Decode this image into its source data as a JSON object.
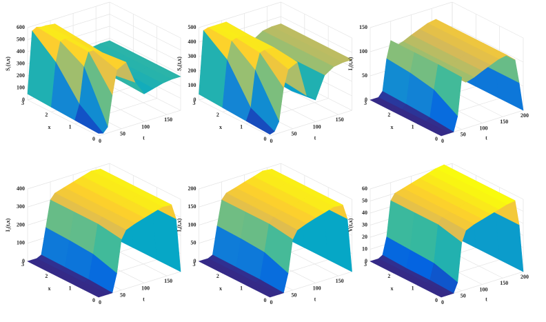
{
  "chart_data": [
    {
      "type": "surface",
      "zlabel": "S₁(t,x)",
      "xlabel": "x",
      "tlabel": "t",
      "x": [
        0,
        1,
        2,
        3
      ],
      "t": [
        0,
        10,
        20,
        30,
        40,
        60,
        80,
        100,
        120,
        140,
        160,
        180
      ],
      "z": [
        [
          20,
          10,
          50,
          300,
          500,
          540,
          350,
          230,
          250,
          270,
          280,
          280
        ],
        [
          30,
          150,
          450,
          560,
          560,
          520,
          320,
          240,
          260,
          270,
          280,
          280
        ],
        [
          40,
          400,
          560,
          570,
          570,
          540,
          320,
          240,
          260,
          270,
          280,
          280
        ],
        [
          50,
          560,
          580,
          570,
          570,
          560,
          330,
          250,
          260,
          270,
          280,
          280
        ]
      ],
      "xlim": [
        0,
        3
      ],
      "xticks": [
        0,
        1,
        2,
        3
      ],
      "tlim": [
        0,
        180
      ],
      "tticks": [
        0,
        50,
        100,
        150
      ],
      "zlim": [
        0,
        600
      ],
      "zticks": [
        0,
        100,
        200,
        300,
        400,
        500,
        600
      ]
    },
    {
      "type": "surface",
      "zlabel": "S₂(t,x)",
      "xlabel": "x",
      "tlabel": "t",
      "x": [
        0,
        1,
        2,
        3
      ],
      "t": [
        0,
        10,
        20,
        30,
        40,
        60,
        80,
        100,
        120,
        140,
        160,
        180
      ],
      "z": [
        [
          10,
          20,
          80,
          300,
          420,
          450,
          200,
          150,
          300,
          340,
          350,
          350
        ],
        [
          20,
          100,
          350,
          460,
          470,
          470,
          220,
          130,
          300,
          340,
          350,
          350
        ],
        [
          30,
          350,
          470,
          480,
          480,
          470,
          230,
          140,
          300,
          340,
          350,
          350
        ],
        [
          40,
          470,
          480,
          480,
          480,
          480,
          240,
          150,
          300,
          340,
          350,
          350
        ]
      ],
      "xlim": [
        0,
        3
      ],
      "xticks": [
        0,
        1,
        2,
        3
      ],
      "tlim": [
        0,
        180
      ],
      "tticks": [
        0,
        50,
        100,
        150
      ],
      "zlim": [
        0,
        500
      ],
      "zticks": [
        0,
        100,
        200,
        300,
        400,
        500
      ]
    },
    {
      "type": "surface",
      "zlabel": "I₁(t,x)",
      "xlabel": "x",
      "tlabel": "t",
      "x": [
        0,
        1,
        2,
        3
      ],
      "t": [
        0,
        10,
        20,
        30,
        40,
        50,
        60,
        80,
        100,
        120,
        140,
        160,
        180,
        190,
        200
      ],
      "z": [
        [
          0,
          0,
          0,
          0,
          30,
          108,
          95,
          100,
          108,
          115,
          122,
          125,
          110,
          60,
          0
        ],
        [
          0,
          0,
          0,
          5,
          60,
          110,
          95,
          100,
          108,
          115,
          122,
          125,
          110,
          60,
          0
        ],
        [
          0,
          0,
          0,
          8,
          70,
          110,
          95,
          100,
          108,
          115,
          122,
          125,
          110,
          60,
          0
        ],
        [
          0,
          0,
          0,
          10,
          75,
          110,
          95,
          100,
          108,
          115,
          122,
          125,
          110,
          60,
          0
        ]
      ],
      "xlim": [
        0,
        3
      ],
      "xticks": [
        0,
        1,
        2,
        3
      ],
      "tlim": [
        0,
        200
      ],
      "tticks": [
        0,
        50,
        100,
        150,
        200
      ],
      "zlim": [
        0,
        150
      ],
      "zticks": [
        0,
        50,
        100,
        150
      ]
    },
    {
      "type": "surface",
      "zlabel": "I₂(t,x)",
      "xlabel": "x",
      "tlabel": "t",
      "x": [
        0,
        1,
        2,
        3
      ],
      "t": [
        0,
        10,
        20,
        30,
        40,
        50,
        60,
        80,
        100,
        120,
        140,
        160,
        170,
        180
      ],
      "z": [
        [
          0,
          0,
          0,
          0,
          100,
          280,
          325,
          345,
          360,
          375,
          390,
          385,
          300,
          0
        ],
        [
          0,
          0,
          0,
          8,
          140,
          300,
          330,
          345,
          360,
          375,
          390,
          385,
          300,
          0
        ],
        [
          0,
          0,
          0,
          10,
          150,
          300,
          330,
          345,
          360,
          375,
          390,
          385,
          300,
          0
        ],
        [
          0,
          0,
          0,
          12,
          155,
          300,
          330,
          345,
          360,
          375,
          390,
          385,
          300,
          0
        ]
      ],
      "xlim": [
        0,
        3
      ],
      "xticks": [
        0,
        1,
        2,
        3
      ],
      "tlim": [
        0,
        180
      ],
      "tticks": [
        0,
        50,
        100,
        150
      ],
      "zlim": [
        0,
        400
      ],
      "zticks": [
        0,
        100,
        200,
        300,
        400
      ]
    },
    {
      "type": "surface",
      "zlabel": "I₃(t,x)",
      "xlabel": "x",
      "tlabel": "t",
      "x": [
        0,
        1,
        2,
        3
      ],
      "t": [
        0,
        10,
        20,
        30,
        40,
        50,
        60,
        80,
        100,
        120,
        140,
        160,
        170,
        180
      ],
      "z": [
        [
          0,
          0,
          0,
          0,
          50,
          140,
          162,
          172,
          180,
          187,
          195,
          192,
          150,
          0
        ],
        [
          0,
          0,
          0,
          4,
          75,
          150,
          165,
          172,
          180,
          187,
          195,
          192,
          150,
          0
        ],
        [
          0,
          0,
          0,
          5,
          80,
          150,
          165,
          172,
          180,
          187,
          195,
          192,
          150,
          0
        ],
        [
          0,
          0,
          0,
          6,
          82,
          150,
          165,
          172,
          180,
          187,
          195,
          192,
          150,
          0
        ]
      ],
      "xlim": [
        0,
        3
      ],
      "xticks": [
        0,
        1,
        2,
        3
      ],
      "tlim": [
        0,
        180
      ],
      "tticks": [
        0,
        50,
        100,
        150
      ],
      "zlim": [
        0,
        200
      ],
      "zticks": [
        0,
        50,
        100,
        150,
        200
      ]
    },
    {
      "type": "surface",
      "zlabel": "V(t,x)",
      "xlabel": "x",
      "tlabel": "t",
      "x": [
        0,
        1,
        2,
        3
      ],
      "t": [
        0,
        10,
        20,
        30,
        40,
        50,
        60,
        80,
        100,
        120,
        140,
        160,
        180,
        190,
        200
      ],
      "z": [
        [
          0,
          0,
          0,
          0,
          8,
          40,
          49,
          52,
          54,
          56,
          58,
          60,
          61,
          40,
          0
        ],
        [
          0,
          0,
          0,
          1,
          14,
          45,
          50,
          52,
          54,
          56,
          58,
          60,
          61,
          40,
          0
        ],
        [
          0,
          0,
          0,
          1,
          15,
          45,
          50,
          52,
          54,
          56,
          58,
          60,
          61,
          40,
          0
        ],
        [
          0,
          0,
          0,
          2,
          16,
          45,
          50,
          52,
          54,
          56,
          58,
          60,
          61,
          40,
          0
        ]
      ],
      "xlim": [
        0,
        3
      ],
      "xticks": [
        0,
        1,
        2,
        3
      ],
      "tlim": [
        0,
        200
      ],
      "tticks": [
        0,
        50,
        100,
        150,
        200
      ],
      "zlim": [
        0,
        60
      ],
      "zticks": [
        0,
        10,
        20,
        30,
        40,
        50,
        60
      ]
    }
  ],
  "colormap": [
    "#352a87",
    "#0363e1",
    "#1485d4",
    "#06a7c6",
    "#38b99e",
    "#92bf73",
    "#d9ba56",
    "#fcce2e",
    "#f9fb0e"
  ]
}
